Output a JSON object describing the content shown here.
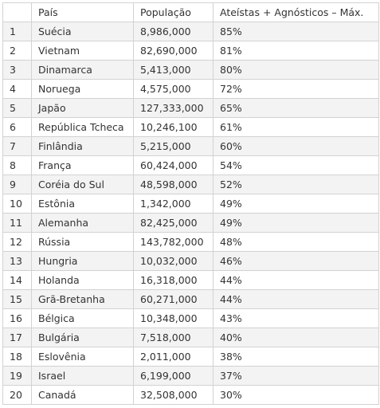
{
  "table": {
    "headers": {
      "rank": "",
      "country": "País",
      "population": "População",
      "percentage": "Ateístas + Agnósticos – Máx."
    },
    "rows": [
      {
        "rank": "1",
        "country": "Suécia",
        "population": "8,986,000",
        "percentage": "85%"
      },
      {
        "rank": "2",
        "country": "Vietnam",
        "population": "82,690,000",
        "percentage": "81%"
      },
      {
        "rank": "3",
        "country": "Dinamarca",
        "population": "5,413,000",
        "percentage": "80%"
      },
      {
        "rank": "4",
        "country": "Noruega",
        "population": "4,575,000",
        "percentage": "72%"
      },
      {
        "rank": "5",
        "country": "Japão",
        "population": "127,333,000",
        "percentage": "65%"
      },
      {
        "rank": "6",
        "country": "República Tcheca",
        "population": "10,246,100",
        "percentage": "61%"
      },
      {
        "rank": "7",
        "country": "Finlândia",
        "population": "5,215,000",
        "percentage": "60%"
      },
      {
        "rank": "8",
        "country": "França",
        "population": "60,424,000",
        "percentage": "54%"
      },
      {
        "rank": "9",
        "country": "Coréia do Sul",
        "population": "48,598,000",
        "percentage": "52%"
      },
      {
        "rank": "10",
        "country": "Estônia",
        "population": "1,342,000",
        "percentage": "49%"
      },
      {
        "rank": "11",
        "country": "Alemanha",
        "population": "82,425,000",
        "percentage": "49%"
      },
      {
        "rank": "12",
        "country": "Rússia",
        "population": "143,782,000",
        "percentage": "48%"
      },
      {
        "rank": "13",
        "country": "Hungria",
        "population": "10,032,000",
        "percentage": "46%"
      },
      {
        "rank": "14",
        "country": "Holanda",
        "population": "16,318,000",
        "percentage": "44%"
      },
      {
        "rank": "15",
        "country": "Grã-Bretanha",
        "population": "60,271,000",
        "percentage": "44%"
      },
      {
        "rank": "16",
        "country": "Bélgica",
        "population": "10,348,000",
        "percentage": "43%"
      },
      {
        "rank": "17",
        "country": "Bulgária",
        "population": "7,518,000",
        "percentage": "40%"
      },
      {
        "rank": "18",
        "country": "Eslovênia",
        "population": "2,011,000",
        "percentage": "38%"
      },
      {
        "rank": "19",
        "country": "Israel",
        "population": "6,199,000",
        "percentage": "37%"
      },
      {
        "rank": "20",
        "country": "Canadá",
        "population": "32,508,000",
        "percentage": "30%"
      }
    ]
  }
}
